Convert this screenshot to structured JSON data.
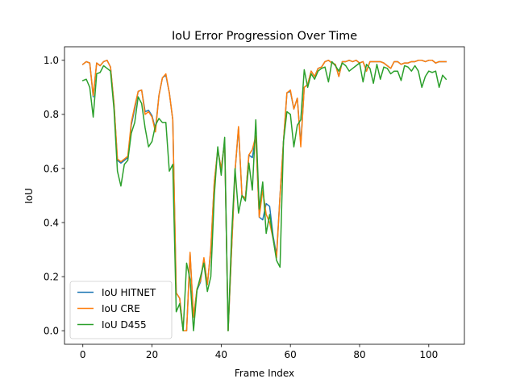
{
  "chart_data": {
    "type": "line",
    "title": "IoU Error Progression Over Time",
    "xlabel": "Frame Index",
    "ylabel": "IoU",
    "xlim": [
      -5.3,
      110.3
    ],
    "ylim": [
      -0.05,
      1.05
    ],
    "xticks": [
      0,
      20,
      40,
      60,
      80,
      100
    ],
    "yticks": [
      0.0,
      0.2,
      0.4,
      0.6,
      0.8,
      1.0
    ],
    "xtick_labels": [
      "0",
      "20",
      "40",
      "60",
      "80",
      "100"
    ],
    "ytick_labels": [
      "0.0",
      "0.2",
      "0.4",
      "0.6",
      "0.8",
      "1.0"
    ],
    "grid": false,
    "legend_position": "lower-left",
    "x": [
      0,
      1,
      2,
      3,
      4,
      5,
      6,
      7,
      8,
      9,
      10,
      11,
      12,
      13,
      14,
      15,
      16,
      17,
      18,
      19,
      20,
      21,
      22,
      23,
      24,
      25,
      26,
      27,
      28,
      29,
      30,
      31,
      32,
      33,
      34,
      35,
      36,
      37,
      38,
      39,
      40,
      41,
      42,
      43,
      44,
      45,
      46,
      47,
      48,
      49,
      50,
      51,
      52,
      53,
      54,
      55,
      56,
      57,
      58,
      59,
      60,
      61,
      62,
      63,
      64,
      65,
      66,
      67,
      68,
      69,
      70,
      71,
      72,
      73,
      74,
      75,
      76,
      77,
      78,
      79,
      80,
      81,
      82,
      83,
      84,
      85,
      86,
      87,
      88,
      89,
      90,
      91,
      92,
      93,
      94,
      95,
      96,
      97,
      98,
      99,
      100,
      101,
      102,
      103,
      104,
      105
    ],
    "series": [
      {
        "name": "IoU HITNET",
        "color": "#1f77b4",
        "values": [
          0.985,
          0.995,
          0.99,
          0.865,
          0.99,
          0.98,
          0.995,
          1.0,
          0.975,
          0.84,
          0.63,
          0.62,
          0.63,
          0.64,
          0.76,
          0.82,
          0.885,
          0.89,
          0.81,
          0.815,
          0.795,
          0.745,
          0.87,
          0.935,
          0.945,
          0.88,
          0.78,
          0.14,
          0.12,
          0.0,
          0.0,
          0.285,
          0.05,
          0.15,
          0.18,
          0.265,
          0.17,
          0.3,
          0.55,
          0.665,
          0.6,
          0.7,
          0.0,
          0.3,
          0.59,
          0.75,
          0.5,
          0.49,
          0.65,
          0.64,
          0.72,
          0.42,
          0.41,
          0.47,
          0.46,
          0.35,
          0.28,
          0.5,
          0.7,
          0.88,
          0.885,
          0.82,
          0.86,
          0.69,
          0.9,
          0.91,
          0.96,
          0.94,
          0.97,
          0.975,
          0.995,
          1.0,
          0.99,
          0.985,
          0.94,
          0.995,
          0.995,
          1.0,
          0.995,
          1.0,
          0.99,
          0.995,
          0.96,
          0.995,
          0.995,
          0.995,
          0.995,
          0.99,
          0.98,
          0.97,
          0.995,
          0.995,
          0.985,
          0.99,
          0.99,
          0.995,
          0.995,
          1.0,
          1.0,
          0.995,
          1.0,
          1.0,
          0.99,
          0.995,
          0.995,
          0.995
        ]
      },
      {
        "name": "IoU CRE",
        "color": "#ff7f0e",
        "values": [
          0.985,
          0.995,
          0.99,
          0.87,
          0.99,
          0.98,
          0.995,
          1.0,
          0.975,
          0.84,
          0.635,
          0.625,
          0.635,
          0.645,
          0.77,
          0.83,
          0.885,
          0.89,
          0.8,
          0.81,
          0.79,
          0.735,
          0.87,
          0.935,
          0.95,
          0.88,
          0.78,
          0.14,
          0.12,
          0.0,
          0.0,
          0.29,
          0.05,
          0.155,
          0.185,
          0.27,
          0.17,
          0.305,
          0.55,
          0.67,
          0.6,
          0.7,
          0.0,
          0.3,
          0.59,
          0.755,
          0.5,
          0.49,
          0.65,
          0.67,
          0.72,
          0.42,
          0.52,
          0.43,
          0.4,
          0.34,
          0.27,
          0.5,
          0.7,
          0.88,
          0.89,
          0.82,
          0.86,
          0.68,
          0.9,
          0.91,
          0.96,
          0.94,
          0.97,
          0.975,
          0.995,
          1.0,
          0.99,
          0.985,
          0.94,
          0.995,
          0.995,
          1.0,
          0.995,
          1.0,
          0.99,
          0.995,
          0.96,
          0.995,
          0.995,
          0.995,
          0.995,
          0.99,
          0.98,
          0.97,
          0.995,
          0.995,
          0.985,
          0.99,
          0.99,
          0.995,
          0.995,
          1.0,
          1.0,
          0.995,
          1.0,
          1.0,
          0.99,
          0.995,
          0.995,
          0.995
        ]
      },
      {
        "name": "IoU D455",
        "color": "#2ca02c",
        "values": [
          0.925,
          0.93,
          0.9,
          0.79,
          0.95,
          0.955,
          0.98,
          0.97,
          0.96,
          0.82,
          0.59,
          0.535,
          0.615,
          0.63,
          0.73,
          0.77,
          0.865,
          0.84,
          0.75,
          0.68,
          0.7,
          0.76,
          0.785,
          0.77,
          0.77,
          0.59,
          0.615,
          0.07,
          0.1,
          0.0,
          0.25,
          0.19,
          0.0,
          0.15,
          0.2,
          0.25,
          0.145,
          0.2,
          0.5,
          0.68,
          0.575,
          0.715,
          0.0,
          0.35,
          0.6,
          0.435,
          0.5,
          0.48,
          0.62,
          0.52,
          0.78,
          0.45,
          0.55,
          0.36,
          0.43,
          0.34,
          0.26,
          0.235,
          0.7,
          0.81,
          0.8,
          0.68,
          0.76,
          0.78,
          0.965,
          0.9,
          0.95,
          0.93,
          0.96,
          0.97,
          0.975,
          0.92,
          0.995,
          0.98,
          0.96,
          0.99,
          0.98,
          0.96,
          0.97,
          0.98,
          0.99,
          0.92,
          0.985,
          0.97,
          0.915,
          0.985,
          0.93,
          0.975,
          0.97,
          0.95,
          0.96,
          0.96,
          0.925,
          0.98,
          0.975,
          0.96,
          0.98,
          0.96,
          0.9,
          0.94,
          0.96,
          0.955,
          0.96,
          0.9,
          0.945,
          0.93
        ]
      }
    ]
  }
}
